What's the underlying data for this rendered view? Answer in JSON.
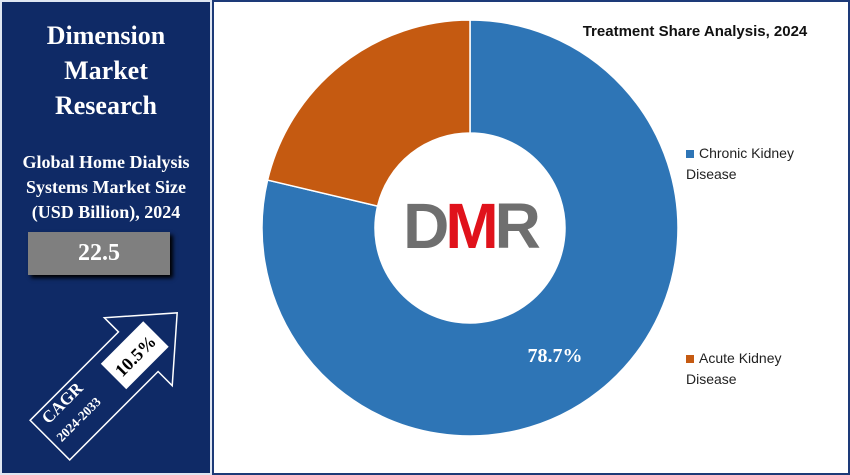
{
  "brand": "Dimension Market Research",
  "market_size": {
    "title": "Global Home Dialysis Systems Market Size (USD Billion), 2024",
    "value": "22.5"
  },
  "cagr": {
    "label": "CAGR",
    "period": "2024-2033",
    "value": "10.5%"
  },
  "logo": "DMR",
  "chart_data": {
    "type": "donut",
    "title": "Treatment Share Analysis, 2024",
    "categories": [
      "Chronic Kidney Disease",
      "Acute Kidney Disease"
    ],
    "values": [
      78.7,
      21.3
    ],
    "value_labels": [
      "78.7%",
      null
    ],
    "colors": [
      "#2e75b6",
      "#c55a11"
    ],
    "legend": "right"
  }
}
